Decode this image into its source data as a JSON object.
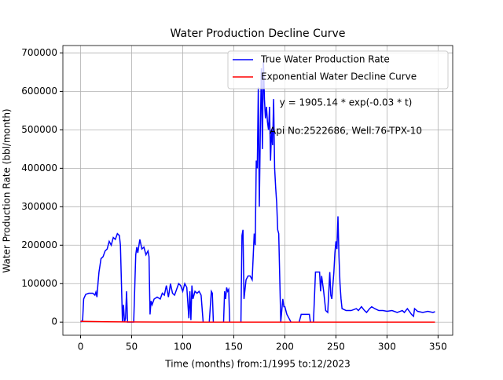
{
  "chart_data": {
    "type": "line",
    "title": "Water Production Decline Curve",
    "xlabel": "Time (months) from:1/1995 to:12/2023",
    "ylabel": "Water Production Rate (bbl/month)",
    "annotations": [
      "y = 1905.14 * exp(-0.03 * t)",
      "Api No:2522686, Well:76-TPX-10"
    ],
    "xlim": [
      -17.35,
      364.35
    ],
    "ylim": [
      -34250,
      719250
    ],
    "xticks": [
      0,
      50,
      100,
      150,
      200,
      250,
      300,
      350
    ],
    "yticks": [
      0,
      100000,
      200000,
      300000,
      400000,
      500000,
      600000,
      700000
    ],
    "grid": true,
    "legend": "upper right",
    "series": [
      {
        "name": "True Water Production Rate",
        "color": "#0000ff",
        "x": [
          0,
          2,
          3,
          5,
          8,
          12,
          14,
          15,
          16,
          17,
          18,
          20,
          22,
          24,
          26,
          28,
          30,
          32,
          34,
          36,
          38,
          39,
          40,
          41,
          42,
          43,
          44,
          45,
          46,
          48,
          52,
          54,
          55,
          56,
          58,
          60,
          62,
          64,
          66,
          67,
          68,
          69,
          70,
          72,
          75,
          78,
          80,
          82,
          84,
          86,
          88,
          90,
          92,
          94,
          96,
          98,
          100,
          102,
          104,
          106,
          107,
          108,
          109,
          110,
          112,
          114,
          116,
          118,
          120,
          122,
          124,
          126,
          128,
          129,
          130,
          132,
          140,
          141,
          142,
          143,
          144,
          145,
          146,
          148,
          155,
          157,
          158,
          159,
          160,
          162,
          164,
          166,
          168,
          170,
          171,
          172,
          173,
          174,
          175,
          176,
          177,
          178,
          179,
          180,
          181,
          182,
          183,
          184,
          185,
          186,
          187,
          188,
          189,
          190,
          191,
          192,
          193,
          194,
          196,
          197,
          198,
          199,
          200,
          202,
          204,
          206,
          210,
          214,
          216,
          220,
          224,
          225,
          228,
          230,
          232,
          234,
          235,
          236,
          238,
          240,
          242,
          244,
          245,
          246,
          248,
          249,
          250,
          251,
          252,
          253,
          254,
          255,
          256,
          260,
          265,
          270,
          272,
          275,
          278,
          280,
          283,
          285,
          288,
          292,
          296,
          300,
          305,
          310,
          315,
          317,
          320,
          324,
          326,
          327,
          330,
          335,
          340,
          345,
          347
        ],
        "values": [
          0,
          5000,
          60000,
          72000,
          75000,
          75000,
          70000,
          78000,
          65000,
          100000,
          130000,
          165000,
          170000,
          185000,
          190000,
          210000,
          200000,
          220000,
          215000,
          230000,
          225000,
          200000,
          100000,
          0,
          45000,
          0,
          10000,
          80000,
          0,
          0,
          0,
          175000,
          195000,
          180000,
          215000,
          190000,
          195000,
          175000,
          185000,
          170000,
          20000,
          55000,
          45000,
          60000,
          65000,
          60000,
          75000,
          70000,
          95000,
          65000,
          100000,
          75000,
          70000,
          85000,
          100000,
          95000,
          80000,
          100000,
          90000,
          10000,
          80000,
          5000,
          95000,
          60000,
          80000,
          75000,
          80000,
          70000,
          0,
          0,
          0,
          0,
          80000,
          75000,
          0,
          0,
          0,
          80000,
          60000,
          90000,
          80000,
          85000,
          0,
          0,
          0,
          0,
          225000,
          240000,
          60000,
          110000,
          120000,
          120000,
          110000,
          230000,
          200000,
          420000,
          400000,
          610000,
          300000,
          500000,
          660000,
          450000,
          685000,
          580000,
          530000,
          560000,
          520000,
          500000,
          560000,
          420000,
          500000,
          460000,
          580000,
          400000,
          350000,
          310000,
          240000,
          230000,
          0,
          30000,
          60000,
          40000,
          40000,
          20000,
          10000,
          0,
          0,
          0,
          20000,
          20000,
          20000,
          0,
          0,
          130000,
          130000,
          130000,
          80000,
          120000,
          80000,
          30000,
          25000,
          130000,
          70000,
          60000,
          130000,
          180000,
          210000,
          190000,
          275000,
          170000,
          100000,
          60000,
          35000,
          30000,
          30000,
          35000,
          30000,
          40000,
          30000,
          25000,
          35000,
          40000,
          35000,
          30000,
          30000,
          28000,
          30000,
          25000,
          30000,
          25000,
          35000,
          20000,
          15000,
          35000,
          28000,
          25000,
          28000,
          25000,
          27000
        ]
      },
      {
        "name": "Exponential Water Decline Curve",
        "color": "#ff0000",
        "x": [
          0,
          25,
          50,
          75,
          100,
          150,
          200,
          250,
          300,
          347
        ],
        "values": [
          1905,
          900,
          425,
          201,
          95,
          21,
          5,
          1,
          0.2,
          0.06
        ]
      }
    ]
  }
}
